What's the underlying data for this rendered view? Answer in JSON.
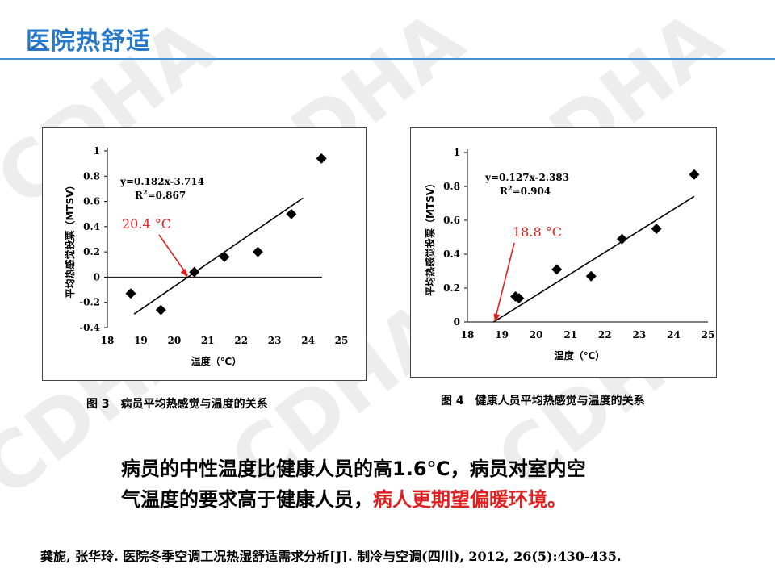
{
  "slide": {
    "title": "医院热舒适",
    "watermark": "CDHA"
  },
  "chart_data": [
    {
      "type": "scatter",
      "caption": "图 3　病员平均热感觉与温度的关系",
      "xlabel": "温度（℃）",
      "ylabel": "平均热感觉投票（MTSV）",
      "xlim": [
        18,
        25
      ],
      "ylim": [
        -0.4,
        1
      ],
      "xticks": [
        18,
        19,
        20,
        21,
        22,
        23,
        24,
        25
      ],
      "yticks": [
        -0.4,
        -0.2,
        0,
        0.2,
        0.4,
        0.6,
        0.8,
        1
      ],
      "ytick_labels": [
        "-0.4",
        "-0.2",
        "0",
        "0.2",
        "0.4",
        "0.6",
        "0.8",
        "1"
      ],
      "zero_line": true,
      "points": [
        {
          "x": 18.7,
          "y": -0.13
        },
        {
          "x": 19.6,
          "y": -0.26
        },
        {
          "x": 20.6,
          "y": 0.04
        },
        {
          "x": 21.5,
          "y": 0.16
        },
        {
          "x": 22.5,
          "y": 0.2
        },
        {
          "x": 23.5,
          "y": 0.5
        },
        {
          "x": 24.4,
          "y": 0.94
        }
      ],
      "fit": {
        "slope": 0.182,
        "intercept": -3.714,
        "x_range": [
          18.8,
          23.85
        ]
      },
      "equation": "y=0.182x-3.714",
      "r2_label": "R",
      "r2_value": "=0.867",
      "annotation": {
        "text": "20.4 °C",
        "target_x": 20.4,
        "target_y": 0
      }
    },
    {
      "type": "scatter",
      "caption": "图 4　健康人员平均热感觉与温度的关系",
      "xlabel": "温度（℃）",
      "ylabel": "平均热感觉投票（MTSV）",
      "xlim": [
        18,
        25
      ],
      "ylim": [
        0,
        1
      ],
      "xticks": [
        18,
        19,
        20,
        21,
        22,
        23,
        24,
        25
      ],
      "yticks": [
        0,
        0.2,
        0.4,
        0.6,
        0.8,
        1
      ],
      "ytick_labels": [
        "0",
        "0.2",
        "0.4",
        "0.6",
        "0.8",
        "1"
      ],
      "zero_line": false,
      "points": [
        {
          "x": 19.4,
          "y": 0.15
        },
        {
          "x": 19.5,
          "y": 0.14
        },
        {
          "x": 20.6,
          "y": 0.31
        },
        {
          "x": 21.6,
          "y": 0.27
        },
        {
          "x": 22.5,
          "y": 0.49
        },
        {
          "x": 23.5,
          "y": 0.55
        },
        {
          "x": 24.6,
          "y": 0.87
        }
      ],
      "fit": {
        "slope": 0.127,
        "intercept": -2.383,
        "x_range": [
          18.76,
          24.6
        ]
      },
      "equation": "y=0.127x-2.383",
      "r2_label": "R",
      "r2_value": "=0.904",
      "annotation": {
        "text": "18.8 °C",
        "target_x": 18.8,
        "target_y": 0
      }
    }
  ],
  "summary": {
    "line1": "病员的中性温度比健康人员的高1.6℃，病员对室内空",
    "line2_plain": "气温度的要求高于健康人员，",
    "line2_highlight": "病人更期望偏暖环境。"
  },
  "citation": "龚旎, 张华玲. 医院冬季空调工况热湿舒适需求分析[J]. 制冷与空调(四川), 2012, 26(5):430-435.",
  "colors": {
    "title": "#2878c8",
    "rule": "#4a90d9",
    "annotation": "#e02020",
    "highlight": "#e02020",
    "watermark": "#ececec"
  }
}
